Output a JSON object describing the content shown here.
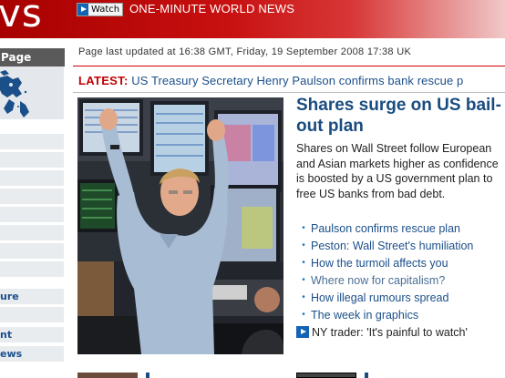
{
  "banner": {
    "logo_text": "vs",
    "watch_label": "Watch",
    "one_minute_title": "ONE-MINUTE WORLD NEWS",
    "colors": {
      "banner_red": "#c81010",
      "watch_blue": "#1464b4"
    }
  },
  "sidebar": {
    "home_label": "Page",
    "items": [
      {
        "label": ""
      },
      {
        "label": ""
      },
      {
        "label": ""
      },
      {
        "label": ""
      },
      {
        "label": ""
      },
      {
        "label": ""
      },
      {
        "label": ""
      },
      {
        "label": ""
      },
      {
        "label": "ure"
      },
      {
        "label": ""
      },
      {
        "label": "nt"
      },
      {
        "label": "ews"
      }
    ]
  },
  "page": {
    "updated": "Page last updated at 16:38 GMT, Friday, 19 September 2008 17:38 UK",
    "latest_label": "LATEST:",
    "latest_text": "US Treasury Secretary Henry Paulson confirms bank rescue p"
  },
  "story": {
    "headline": "Shares surge on US bail-out plan",
    "summary": "Shares on Wall Street follow European and Asian markets higher as confidence is boosted by a US government plan to free US banks from bad debt.",
    "links": [
      {
        "label": "Paulson confirms rescue plan",
        "style": "normal"
      },
      {
        "label": "Peston: Wall Street's humiliation",
        "style": "normal"
      },
      {
        "label": "How the turmoil affects you",
        "style": "normal"
      },
      {
        "label": "Where now for capitalism?",
        "style": "visited"
      },
      {
        "label": "How illegal rumours spread",
        "style": "normal"
      },
      {
        "label": "The week in graphics",
        "style": "normal"
      },
      {
        "label": "NY trader: 'It's painful to watch'",
        "style": "video"
      }
    ]
  }
}
